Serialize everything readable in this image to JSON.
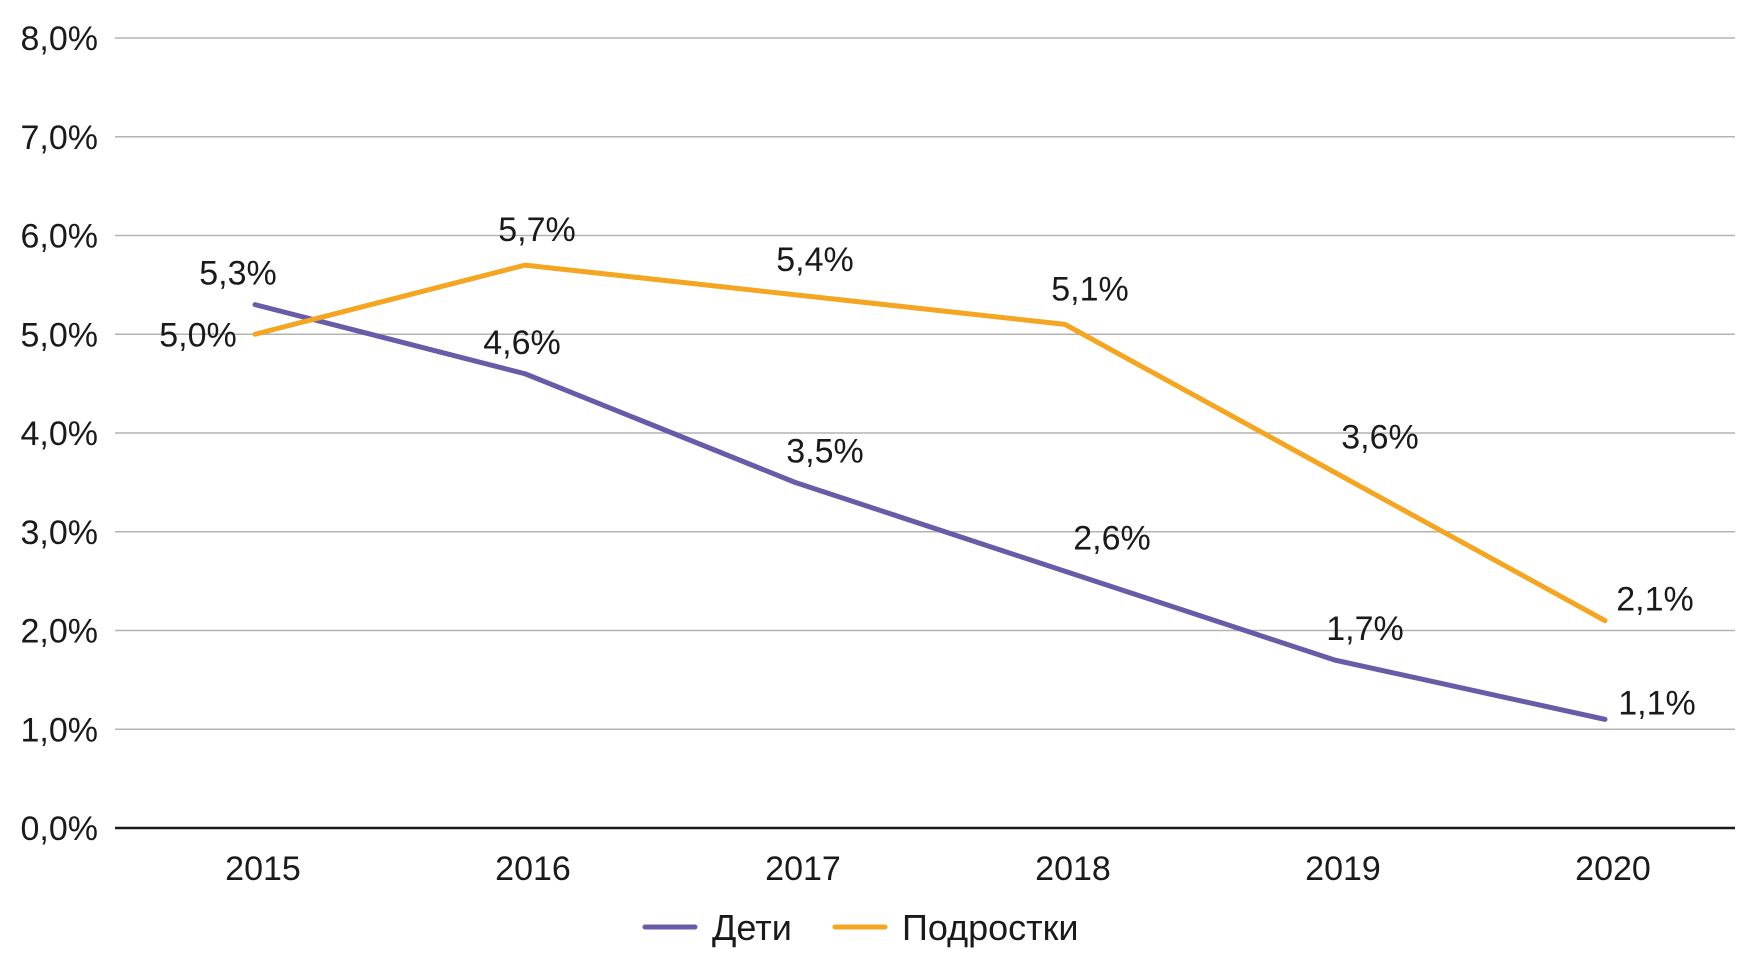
{
  "chart_data": {
    "type": "line",
    "title": "",
    "xlabel": "",
    "ylabel": "",
    "categories": [
      "2015",
      "2016",
      "2017",
      "2018",
      "2019",
      "2020"
    ],
    "ylim": [
      0,
      8
    ],
    "yticks": [
      "0,0%",
      "1,0%",
      "2,0%",
      "3,0%",
      "4,0%",
      "5,0%",
      "6,0%",
      "7,0%",
      "8,0%"
    ],
    "grid": true,
    "legend_position": "bottom-center",
    "series": [
      {
        "name": "Дети",
        "color": "#6a5ba8",
        "values": [
          5.3,
          4.6,
          3.5,
          2.6,
          1.7,
          1.1
        ],
        "labels": [
          "5,3%",
          "4,6%",
          "3,5%",
          "2,6%",
          "1,7%",
          "1,1%"
        ]
      },
      {
        "name": "Подростки",
        "color": "#f4a522",
        "values": [
          5.0,
          5.7,
          5.4,
          5.1,
          3.6,
          2.1
        ],
        "labels": [
          "5,0%",
          "5,7%",
          "5,4%",
          "5,1%",
          "3,6%",
          "2,1%"
        ]
      }
    ]
  }
}
